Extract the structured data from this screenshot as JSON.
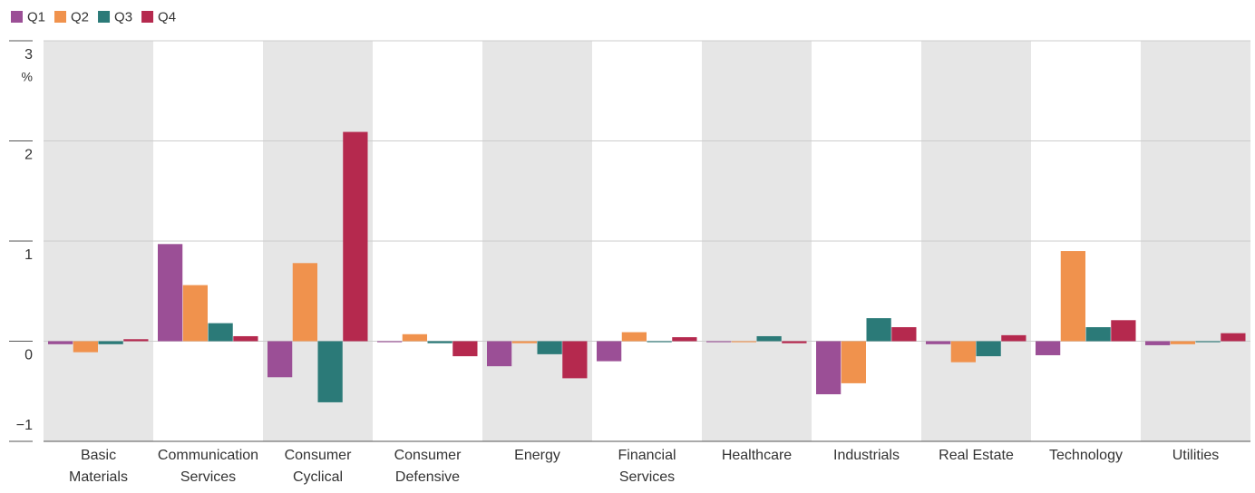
{
  "chart_data": {
    "type": "bar",
    "categories": [
      "Basic\nMaterials",
      "Communication\nServices",
      "Consumer\nCyclical",
      "Consumer\nDefensive",
      "Energy",
      "Financial\nServices",
      "Healthcare",
      "Industrials",
      "Real Estate",
      "Technology",
      "Utilities"
    ],
    "series": [
      {
        "name": "Q1",
        "color": "#9b4f96",
        "values": [
          -0.03,
          0.97,
          -0.36,
          -0.01,
          -0.25,
          -0.2,
          -0.01,
          -0.53,
          -0.03,
          -0.14,
          -0.04
        ]
      },
      {
        "name": "Q2",
        "color": "#f0924d",
        "values": [
          -0.11,
          0.56,
          0.78,
          0.07,
          -0.02,
          0.09,
          -0.01,
          -0.42,
          -0.21,
          0.9,
          -0.03
        ]
      },
      {
        "name": "Q3",
        "color": "#2b7a78",
        "values": [
          -0.03,
          0.18,
          -0.61,
          -0.02,
          -0.13,
          -0.01,
          0.05,
          0.23,
          -0.15,
          0.14,
          -0.01
        ]
      },
      {
        "name": "Q4",
        "color": "#b5294e",
        "values": [
          0.02,
          0.05,
          2.09,
          -0.15,
          -0.37,
          0.04,
          -0.02,
          0.14,
          0.06,
          0.21,
          0.08
        ]
      }
    ],
    "y_unit": "%",
    "ylim": [
      -1,
      3
    ],
    "yticks": [
      {
        "value": -1,
        "label": "−1"
      },
      0,
      1,
      2,
      3
    ],
    "grid": true,
    "band_color": "#e6e6e6",
    "legend": "top-left"
  }
}
